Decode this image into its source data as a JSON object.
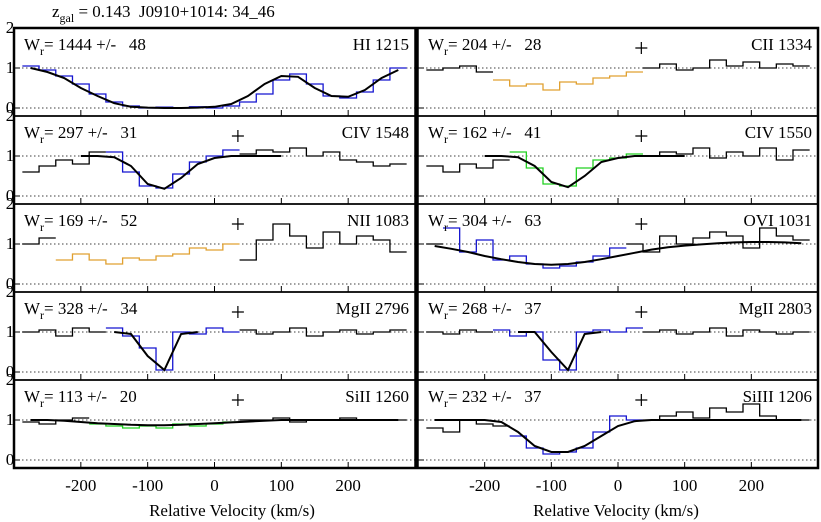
{
  "chart_data": {
    "type": "line",
    "title": {
      "prefix": "z",
      "sub": "gal",
      "text": " = 0.143  J0910+1014: 34_46"
    },
    "wr_symbol": "W",
    "wr_sub": "r",
    "xlabel": "Relative Velocity (km/s)",
    "x": [
      -275,
      -250,
      -225,
      -200,
      -175,
      -150,
      -125,
      -100,
      -75,
      -50,
      -25,
      0,
      25,
      50,
      75,
      100,
      125,
      150,
      175,
      200,
      225,
      250,
      275
    ],
    "xlim": [
      -300,
      300
    ],
    "xticks": [
      -200,
      -100,
      0,
      100,
      200
    ],
    "ylim": [
      -0.2,
      2.0
    ],
    "yticks": [
      0,
      1,
      2
    ],
    "panels": [
      {
        "label": "HI 1215",
        "annotation": "= 1444 +/-   48",
        "markers": [],
        "series": [
          {
            "color": "#1515d0",
            "values": [
              1.05,
              0.95,
              0.8,
              0.6,
              0.35,
              0.15,
              0.05,
              0.0,
              0.02,
              0.0,
              0.03,
              0.0,
              0.05,
              0.15,
              0.35,
              0.7,
              0.85,
              0.6,
              0.3,
              0.25,
              0.4,
              0.7,
              1.0
            ]
          }
        ],
        "fit": [
          1.0,
          0.9,
          0.75,
          0.5,
          0.3,
          0.12,
          0.03,
          0.01,
          0.0,
          0.0,
          0.01,
          0.03,
          0.1,
          0.3,
          0.6,
          0.8,
          0.78,
          0.5,
          0.3,
          0.28,
          0.45,
          0.75,
          0.95
        ]
      },
      {
        "label": "CII 1334",
        "annotation": "= 204 +/-   28",
        "markers": [
          35
        ],
        "series": [
          {
            "color": "#000000",
            "values": [
              0.95,
              1.0,
              1.05,
              0.9,
              null,
              null,
              null,
              null,
              null,
              null,
              null,
              null,
              null,
              1.0,
              1.1,
              0.95,
              1.0,
              1.2,
              1.05,
              1.15,
              1.0,
              1.1,
              1.05
            ]
          },
          {
            "color": "#e0a030",
            "values": [
              null,
              null,
              null,
              null,
              0.7,
              0.55,
              0.6,
              0.45,
              0.65,
              0.6,
              0.75,
              0.8,
              0.9,
              null,
              null,
              null,
              null,
              null,
              null,
              null,
              null,
              null,
              null
            ]
          }
        ],
        "fit": []
      },
      {
        "label": "CIV 1548",
        "annotation": "= 297 +/-   31",
        "markers": [
          35
        ],
        "series": [
          {
            "color": "#000000",
            "values": [
              0.6,
              0.75,
              0.9,
              0.8,
              1.1,
              null,
              null,
              null,
              null,
              null,
              null,
              null,
              null,
              1.05,
              1.15,
              1.1,
              1.2,
              1.0,
              1.1,
              0.9,
              0.85,
              0.75,
              0.8
            ]
          },
          {
            "color": "#1515d0",
            "values": [
              null,
              null,
              null,
              null,
              null,
              1.1,
              0.6,
              0.25,
              0.2,
              0.55,
              0.85,
              1.0,
              1.15,
              null,
              null,
              null,
              null,
              null,
              null,
              null,
              null,
              null,
              null
            ]
          }
        ],
        "fit": [
          null,
          null,
          null,
          1.0,
          1.0,
          0.97,
          0.75,
          0.3,
          0.18,
          0.45,
          0.8,
          0.95,
          1.0,
          1.0,
          1.0,
          1.0,
          null,
          null,
          null,
          null,
          null,
          null,
          null
        ]
      },
      {
        "label": "CIV 1550",
        "annotation": "= 162 +/-   41",
        "markers": [
          35
        ],
        "series": [
          {
            "color": "#000000",
            "values": [
              0.75,
              0.6,
              0.8,
              0.7,
              0.9,
              null,
              null,
              null,
              null,
              null,
              null,
              null,
              null,
              1.0,
              1.1,
              1.05,
              1.2,
              0.95,
              1.1,
              1.0,
              1.2,
              0.9,
              1.15
            ]
          },
          {
            "color": "#20d020",
            "values": [
              null,
              null,
              null,
              null,
              null,
              1.1,
              0.7,
              0.3,
              0.25,
              0.7,
              0.9,
              0.95,
              1.05,
              null,
              null,
              null,
              null,
              null,
              null,
              null,
              null,
              null,
              null
            ]
          }
        ],
        "fit": [
          null,
          null,
          null,
          1.0,
          1.0,
          0.97,
          0.75,
          0.35,
          0.22,
          0.5,
          0.85,
          0.95,
          1.0,
          1.0,
          1.0,
          1.0,
          null,
          null,
          null,
          null,
          null,
          null,
          null
        ]
      },
      {
        "label": "NII 1083",
        "annotation": "= 169 +/-   52",
        "markers": [
          35
        ],
        "series": [
          {
            "color": "#000000",
            "values": [
              1.0,
              1.15,
              null,
              null,
              null,
              null,
              null,
              null,
              null,
              null,
              null,
              null,
              null,
              0.6,
              1.1,
              1.5,
              1.2,
              0.9,
              1.3,
              1.0,
              1.2,
              1.1,
              0.8
            ]
          },
          {
            "color": "#e0a030",
            "values": [
              null,
              null,
              0.6,
              0.75,
              0.6,
              0.5,
              0.65,
              0.6,
              0.7,
              0.75,
              0.9,
              0.85,
              1.0,
              null,
              null,
              null,
              null,
              null,
              null,
              null,
              null,
              null,
              null
            ]
          }
        ],
        "fit": []
      },
      {
        "label": "OVI 1031",
        "annotation": "= 304 +/-   63",
        "markers": [
          35
        ],
        "series": [
          {
            "color": "#000000",
            "values": [
              1.0,
              null,
              null,
              null,
              null,
              null,
              null,
              null,
              null,
              null,
              null,
              null,
              1.0,
              0.8,
              1.2,
              1.0,
              1.15,
              1.3,
              1.2,
              0.9,
              1.4,
              1.2,
              1.1
            ]
          },
          {
            "color": "#1515d0",
            "values": [
              null,
              1.4,
              0.8,
              1.1,
              0.6,
              0.7,
              0.5,
              0.4,
              0.45,
              0.55,
              0.7,
              0.9,
              null,
              null,
              null,
              null,
              null,
              null,
              null,
              null,
              null,
              null,
              null
            ]
          }
        ],
        "fit": [
          0.95,
          0.88,
          0.8,
          0.7,
          0.62,
          0.55,
          0.5,
          0.48,
          0.5,
          0.55,
          0.62,
          0.7,
          0.78,
          0.86,
          0.92,
          0.96,
          0.99,
          1.02,
          1.04,
          1.05,
          1.05,
          1.04,
          1.02
        ]
      },
      {
        "label": "MgII 2796",
        "annotation": "= 328 +/-   34",
        "markers": [
          35
        ],
        "series": [
          {
            "color": "#000000",
            "values": [
              1.0,
              1.05,
              0.9,
              1.1,
              1.0,
              null,
              null,
              null,
              null,
              null,
              null,
              null,
              null,
              1.05,
              0.95,
              1.0,
              1.1,
              0.9,
              1.0,
              1.05,
              0.95,
              1.0,
              1.05
            ]
          },
          {
            "color": "#1515d0",
            "values": [
              null,
              null,
              null,
              null,
              null,
              1.1,
              0.9,
              0.6,
              0.05,
              1.0,
              0.95,
              1.1,
              1.0,
              null,
              null,
              null,
              null,
              null,
              null,
              null,
              null,
              null,
              null
            ]
          }
        ],
        "fit": [
          null,
          null,
          null,
          null,
          null,
          1.0,
          0.95,
          0.4,
          0.05,
          0.95,
          1.0,
          null,
          null,
          null,
          null,
          null,
          null,
          null,
          null,
          null,
          null,
          null,
          null
        ]
      },
      {
        "label": "MgII 2803",
        "annotation": "= 268 +/-   37",
        "markers": [
          35
        ],
        "series": [
          {
            "color": "#000000",
            "values": [
              1.0,
              0.95,
              1.05,
              1.0,
              null,
              null,
              null,
              null,
              null,
              null,
              null,
              null,
              null,
              1.0,
              1.05,
              0.95,
              1.0,
              1.1,
              0.9,
              1.05,
              1.0,
              0.95,
              1.0
            ]
          },
          {
            "color": "#1515d0",
            "values": [
              null,
              null,
              null,
              null,
              1.05,
              0.9,
              1.0,
              0.3,
              0.05,
              1.0,
              1.05,
              1.0,
              1.1,
              null,
              null,
              null,
              null,
              null,
              null,
              null,
              null,
              null,
              null
            ]
          }
        ],
        "fit": [
          null,
          null,
          null,
          null,
          null,
          1.0,
          1.0,
          0.5,
          0.05,
          0.95,
          1.0,
          null,
          null,
          null,
          null,
          null,
          null,
          null,
          null,
          null,
          null,
          null,
          null
        ]
      },
      {
        "label": "SiII 1260",
        "annotation": "= 113 +/-   20",
        "markers": [
          35
        ],
        "series": [
          {
            "color": "#000000",
            "values": [
              0.95,
              0.9,
              1.0,
              1.05,
              null,
              null,
              null,
              null,
              null,
              null,
              null,
              null,
              null,
              1.0,
              1.0,
              1.05,
              0.95,
              1.0,
              1.0,
              1.05,
              1.0,
              1.0,
              1.0
            ]
          },
          {
            "color": "#20d020",
            "values": [
              null,
              null,
              null,
              null,
              0.9,
              0.85,
              0.8,
              0.85,
              0.8,
              0.9,
              0.85,
              0.9,
              0.95,
              null,
              null,
              null,
              null,
              null,
              null,
              null,
              null,
              null,
              null
            ]
          }
        ],
        "fit": [
          1.0,
          1.0,
          0.98,
          0.95,
          0.92,
          0.9,
          0.88,
          0.87,
          0.87,
          0.88,
          0.9,
          0.92,
          0.94,
          0.96,
          0.98,
          1.0,
          1.0,
          1.0,
          1.0,
          1.0,
          1.0,
          1.0,
          1.0
        ]
      },
      {
        "label": "SiIII 1206",
        "annotation": "= 232 +/-   37",
        "markers": [
          35
        ],
        "series": [
          {
            "color": "#000000",
            "values": [
              0.8,
              0.7,
              1.0,
              0.9,
              0.85,
              null,
              null,
              null,
              null,
              null,
              null,
              null,
              null,
              1.0,
              1.1,
              1.2,
              1.05,
              1.3,
              1.2,
              1.4,
              1.1,
              1.0,
              1.0
            ]
          },
          {
            "color": "#1515d0",
            "values": [
              null,
              null,
              null,
              null,
              null,
              0.6,
              0.3,
              0.15,
              0.2,
              0.3,
              0.7,
              1.1,
              1.0,
              null,
              null,
              null,
              null,
              null,
              null,
              null,
              null,
              null,
              null
            ]
          }
        ],
        "fit": [
          1.0,
          1.0,
          1.0,
          1.0,
          0.95,
          0.7,
          0.35,
          0.2,
          0.2,
          0.35,
          0.6,
          0.85,
          0.97,
          1.0,
          1.0,
          1.0,
          1.0,
          1.0,
          1.0,
          1.0,
          1.0,
          1.0,
          1.0
        ]
      }
    ]
  }
}
